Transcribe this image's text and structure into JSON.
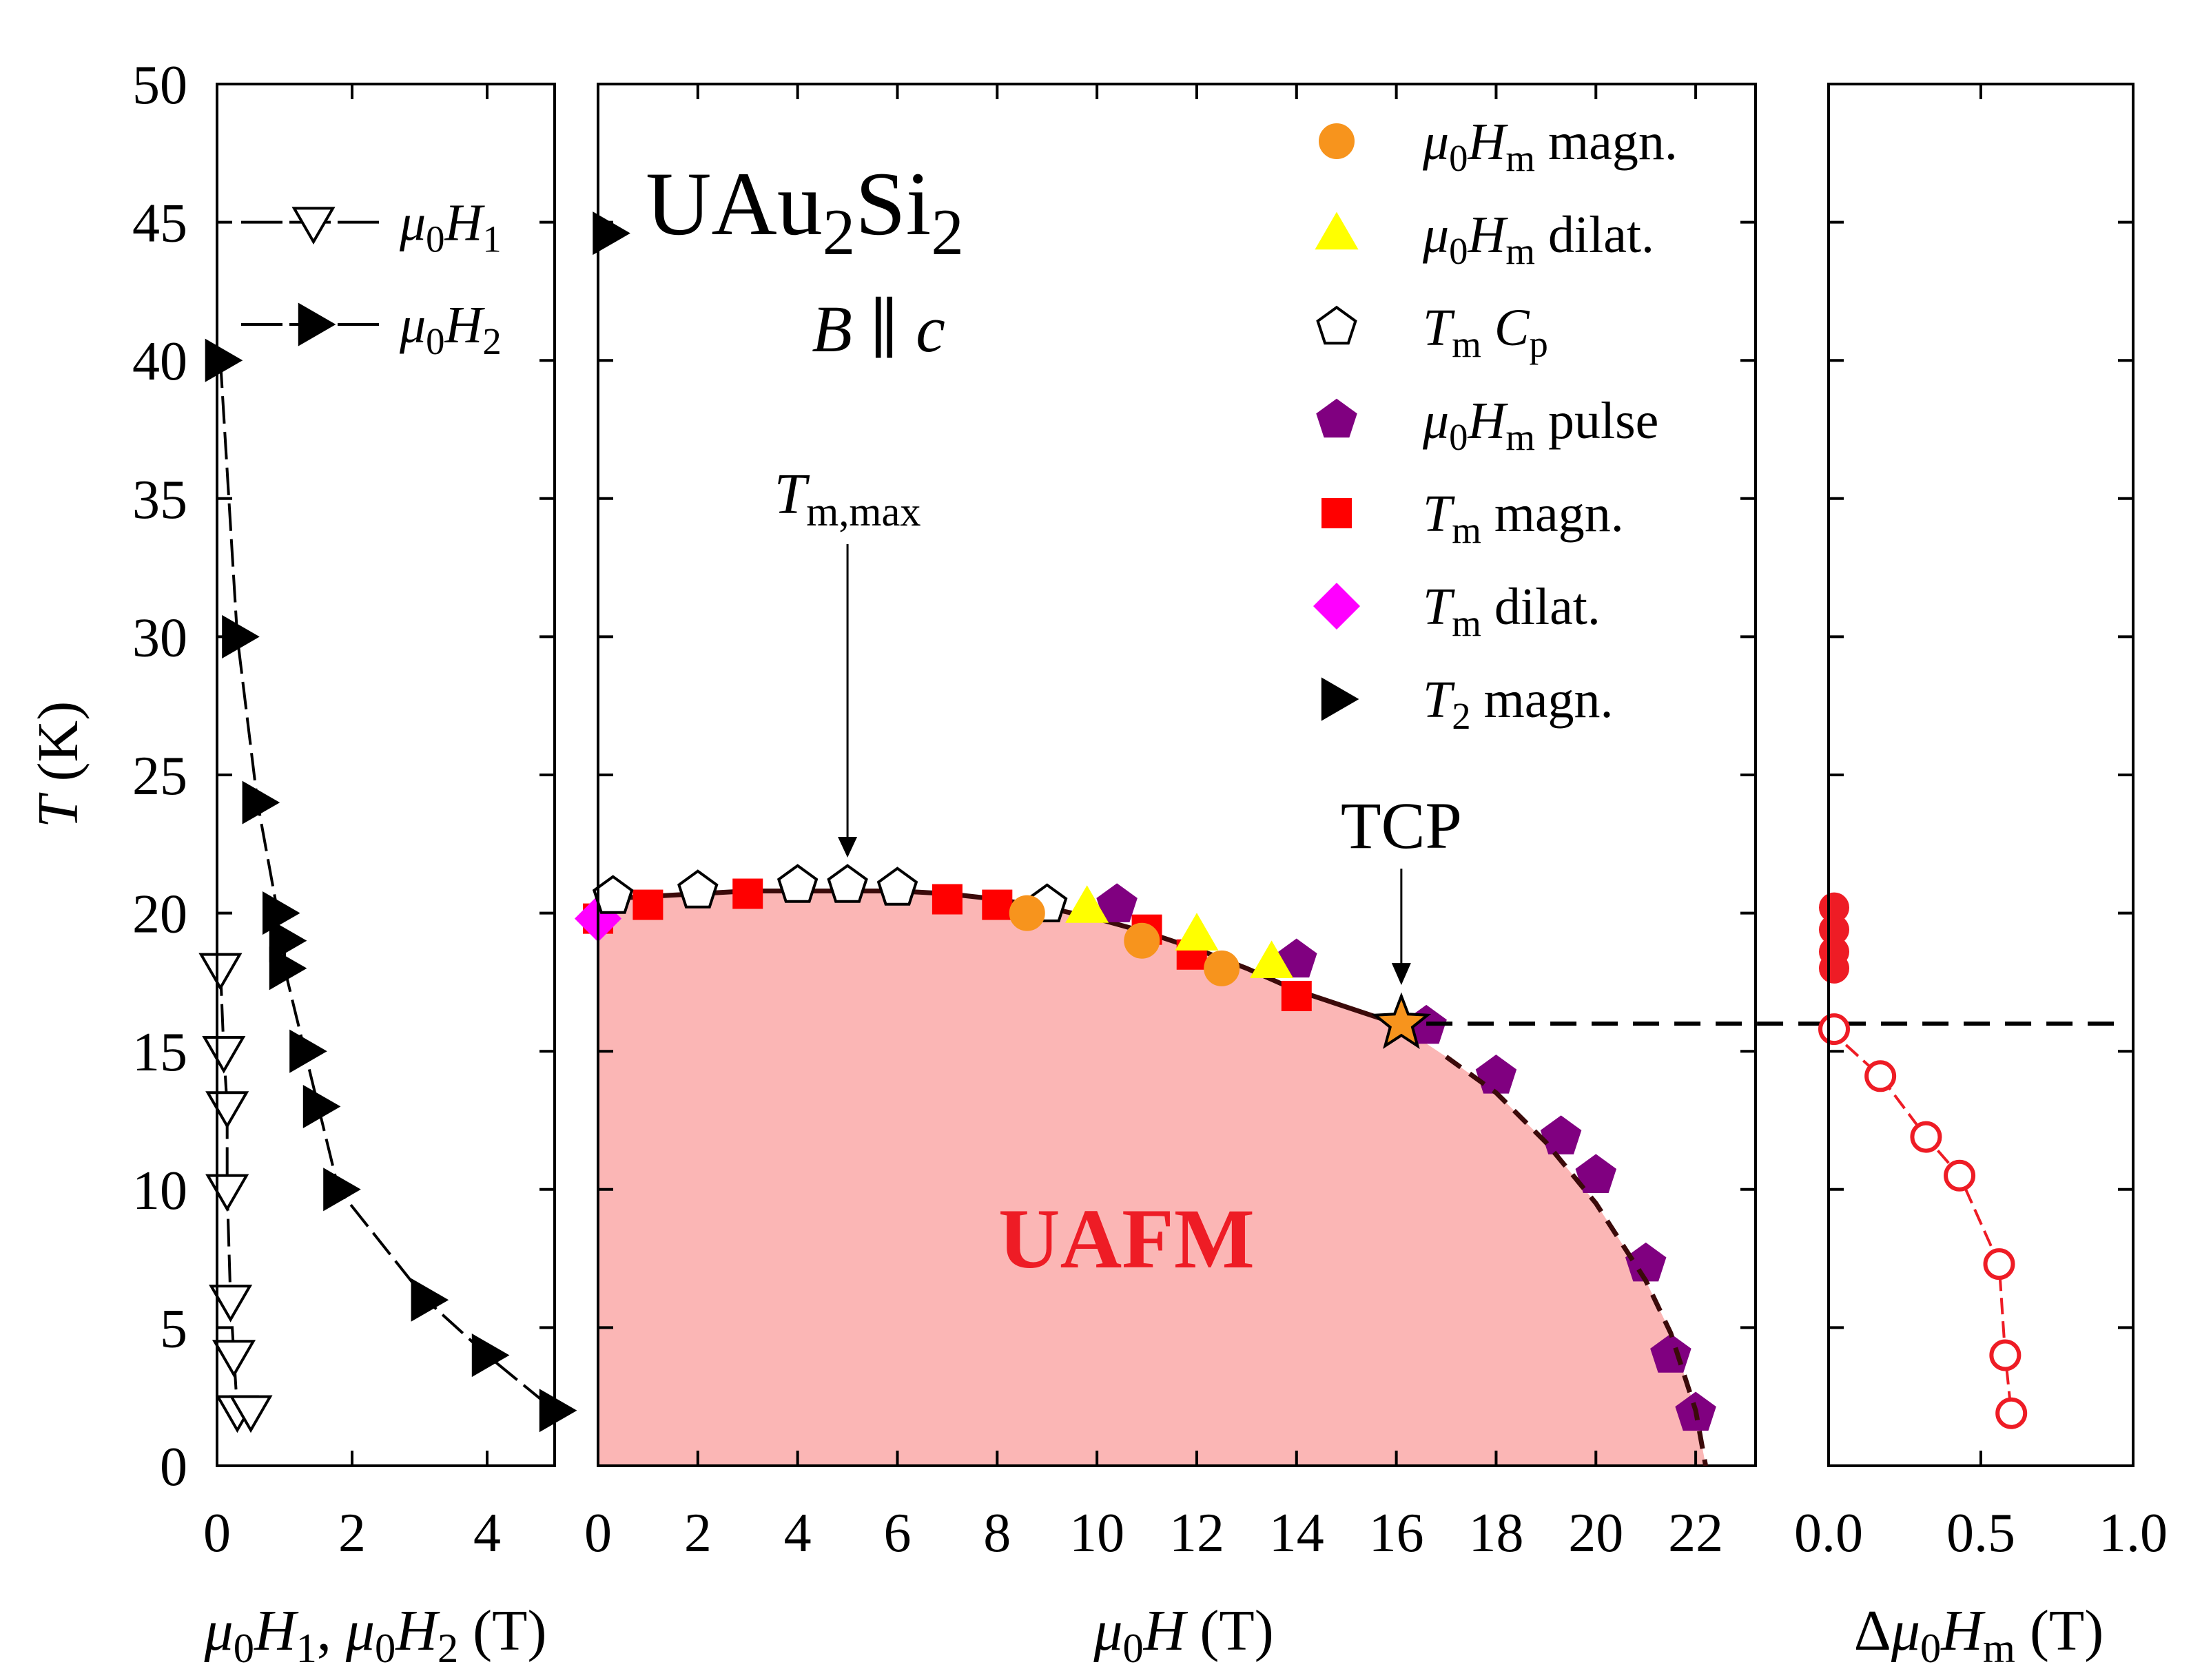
{
  "chart_data": [
    {
      "panel": "left",
      "type": "scatter",
      "xlabel": "μ0H1, μ0H2 (T)",
      "ylabel": "T (K)",
      "xlim": [
        0,
        5
      ],
      "ylim": [
        0,
        50
      ],
      "x_ticks": [
        "0",
        "2",
        "4"
      ],
      "y_ticks": [
        "0",
        "5",
        "10",
        "15",
        "20",
        "25",
        "30",
        "35",
        "40",
        "45",
        "50"
      ],
      "legend": [
        {
          "key": "H1",
          "label": "μ0H1",
          "marker": "open-triangle-down"
        },
        {
          "key": "H2",
          "label": "μ0H2",
          "marker": "filled-triangle-right"
        }
      ],
      "series": {
        "H1": {
          "x": [
            0.05,
            0.1,
            0.15,
            0.15,
            0.2,
            0.25,
            0.3,
            0.5
          ],
          "y": [
            18,
            15,
            13,
            10,
            6,
            4,
            2,
            2
          ]
        },
        "H2": {
          "x": [
            0.05,
            0.3,
            0.6,
            0.9,
            1.0,
            1.0,
            1.3,
            1.5,
            1.8,
            3.1,
            4.0,
            5.0
          ],
          "y": [
            40,
            30,
            24,
            20,
            19,
            18,
            15,
            13,
            10,
            6,
            4,
            2
          ]
        }
      }
    },
    {
      "panel": "main",
      "type": "scatter",
      "title": "UAu2Si2",
      "subtitle": "B ∥ c",
      "xlabel": "μ0H (T)",
      "xlim": [
        0,
        23.2
      ],
      "ylim": [
        0,
        50
      ],
      "x_ticks": [
        "0",
        "2",
        "4",
        "6",
        "8",
        "10",
        "12",
        "14",
        "16",
        "18",
        "20",
        "22"
      ],
      "phase_label": "UAFM",
      "annotations": {
        "tmax_label": "Tm,max",
        "tmax_x": 5,
        "tcp_label": "TCP",
        "tcp_point": [
          16.1,
          16
        ]
      },
      "boundary": {
        "H": [
          0,
          1,
          2,
          3,
          4,
          5,
          6,
          7,
          8,
          9,
          10,
          11,
          12,
          13,
          14,
          15,
          16,
          17,
          18,
          19,
          20,
          21,
          21.5,
          22,
          22.2
        ],
        "T": [
          20.5,
          20.6,
          20.7,
          20.8,
          20.8,
          20.8,
          20.8,
          20.7,
          20.5,
          20.2,
          19.8,
          19.3,
          18.7,
          18.0,
          17.2,
          16.6,
          16.0,
          14.8,
          13.5,
          11.7,
          9.5,
          6.7,
          4.8,
          2.0,
          0
        ]
      },
      "legend": [
        {
          "key": "Hm_magn",
          "label": "μ0Hm magn.",
          "marker": "circle",
          "color": "#f7941d"
        },
        {
          "key": "Hm_dilat",
          "label": "μ0Hm dilat.",
          "marker": "triangle-up",
          "color": "#ffff00"
        },
        {
          "key": "Tm_Cp",
          "label": "Tm Cp",
          "marker": "open-pentagon",
          "color": "#ffffff"
        },
        {
          "key": "Hm_pulse",
          "label": "μ0Hm pulse",
          "marker": "pentagon",
          "color": "#800080"
        },
        {
          "key": "Tm_magn",
          "label": "Tm magn.",
          "marker": "square",
          "color": "#ff0000"
        },
        {
          "key": "Tm_dilat",
          "label": "Tm dilat.",
          "marker": "diamond",
          "color": "#ff00ff"
        },
        {
          "key": "T2_magn",
          "label": "T2 magn.",
          "marker": "triangle-right",
          "color": "#000000"
        }
      ],
      "series": {
        "Tm_Cp": {
          "x": [
            0.3,
            2,
            4,
            5,
            6,
            9
          ],
          "y": [
            20.6,
            20.8,
            21.0,
            21.0,
            20.9,
            20.3
          ]
        },
        "Tm_magn": {
          "x": [
            0,
            1,
            3,
            7,
            8,
            11,
            11.9,
            14
          ],
          "y": [
            19.8,
            20.3,
            20.7,
            20.5,
            20.3,
            19.4,
            18.5,
            17.0
          ]
        },
        "Tm_dilat": {
          "x": [
            0
          ],
          "y": [
            19.8
          ]
        },
        "Hm_magn": {
          "x": [
            8.6,
            10.9,
            12.5
          ],
          "y": [
            20.0,
            19.0,
            18.0
          ]
        },
        "Hm_dilat": {
          "x": [
            9.8,
            12.0,
            13.5
          ],
          "y": [
            20.2,
            19.2,
            18.2
          ]
        },
        "Hm_pulse": {
          "x": [
            10.4,
            14.0,
            16.6,
            18.0,
            19.3,
            20.0,
            21.0,
            21.5,
            22.0
          ],
          "y": [
            20.3,
            18.3,
            15.9,
            14.1,
            11.9,
            10.5,
            7.3,
            4.0,
            1.9
          ]
        },
        "T2_magn": {
          "x": [
            0.2
          ],
          "y": [
            44.6
          ]
        }
      }
    },
    {
      "panel": "right",
      "type": "scatter",
      "xlabel": "Δμ0Hm (T)",
      "xlim": [
        0,
        1.0
      ],
      "ylim": [
        0,
        50
      ],
      "x_ticks": [
        "0.0",
        "0.5",
        "1.0"
      ],
      "series": {
        "filled": {
          "x": [
            0.0,
            0.0,
            0.0,
            0.0
          ],
          "y": [
            20.2,
            19.4,
            18.6,
            18.0
          ]
        },
        "open": {
          "x": [
            0.0,
            0.17,
            0.32,
            0.43,
            0.56,
            0.58,
            0.6
          ],
          "y": [
            15.8,
            14.1,
            11.9,
            10.5,
            7.3,
            4.0,
            1.9
          ]
        }
      },
      "tcp_level_T": 16
    }
  ]
}
